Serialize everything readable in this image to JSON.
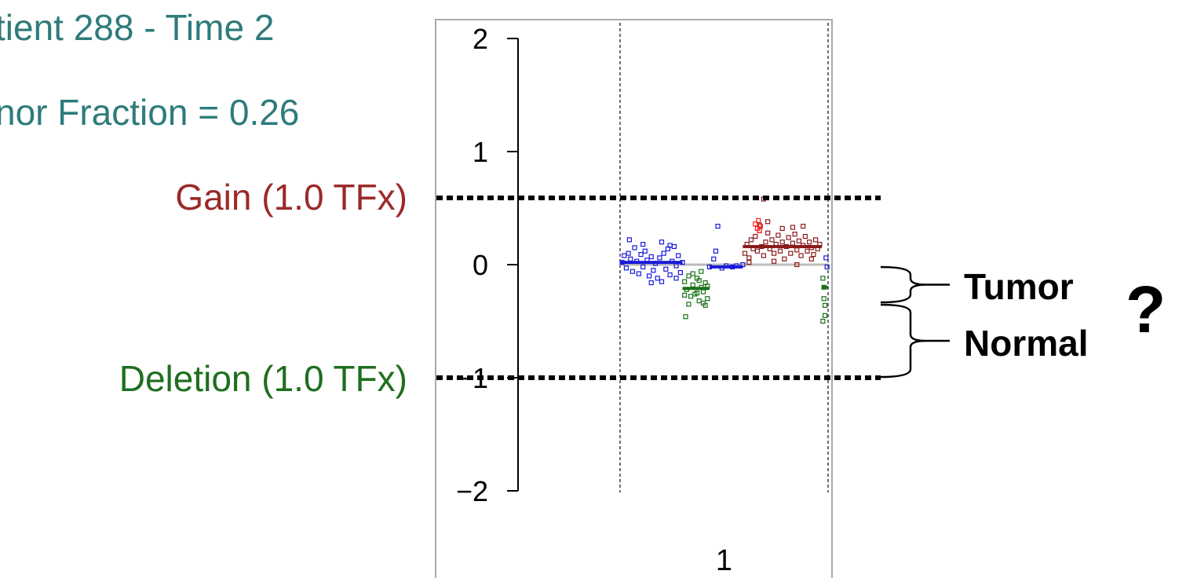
{
  "title": {
    "line1": "tient 288 - Time 2",
    "line2": "nor Fraction = 0.26",
    "color": "#2e7b7b"
  },
  "reference_lines": {
    "gain": {
      "label": "Gain (1.0 TFx)",
      "y": 0.59,
      "color": "#9b2a2a"
    },
    "deletion": {
      "label": "Deletion (1.0 TFx)",
      "y": -1.0,
      "color": "#1e6e1e"
    }
  },
  "annotations": {
    "tumor": "Tumor",
    "normal": "Normal",
    "question": "?"
  },
  "chart_data": {
    "type": "scatter",
    "ylim": [
      -2,
      2
    ],
    "y_ticks": [
      2,
      1,
      0,
      -1,
      -2
    ],
    "x_tick_labels": [
      "1"
    ],
    "grid": false,
    "colors": {
      "neutral": "#1a1adb",
      "gain": "#8b1a1a",
      "loss": "#1a701a",
      "highlight": "#ff2020",
      "baseline": "#bbbbbb"
    },
    "series": [
      {
        "points": [
          {
            "x": 0.01,
            "y": 0.02
          },
          {
            "x": 0.02,
            "y": 0.08
          },
          {
            "x": 0.03,
            "y": -0.03
          },
          {
            "x": 0.04,
            "y": 0.1
          },
          {
            "x": 0.05,
            "y": 0.05
          },
          {
            "x": 0.06,
            "y": -0.06
          },
          {
            "x": 0.07,
            "y": 0.15
          },
          {
            "x": 0.08,
            "y": 0.03
          },
          {
            "x": 0.09,
            "y": -0.08
          },
          {
            "x": 0.1,
            "y": 0.09
          },
          {
            "x": 0.11,
            "y": -0.02
          },
          {
            "x": 0.12,
            "y": 0.12
          },
          {
            "x": 0.13,
            "y": 0.04
          },
          {
            "x": 0.14,
            "y": -0.1
          },
          {
            "x": 0.15,
            "y": 0.07
          },
          {
            "x": 0.16,
            "y": -0.05
          },
          {
            "x": 0.17,
            "y": 0.01
          },
          {
            "x": 0.18,
            "y": -0.12
          },
          {
            "x": 0.19,
            "y": 0.06
          },
          {
            "x": 0.2,
            "y": -0.15
          },
          {
            "x": 0.21,
            "y": 0.1
          },
          {
            "x": 0.22,
            "y": -0.04
          },
          {
            "x": 0.23,
            "y": 0.14
          },
          {
            "x": 0.24,
            "y": -0.09
          },
          {
            "x": 0.25,
            "y": 0.03
          },
          {
            "x": 0.26,
            "y": 0.16
          },
          {
            "x": 0.27,
            "y": -0.01
          },
          {
            "x": 0.28,
            "y": 0.08
          },
          {
            "x": 0.29,
            "y": -0.07
          },
          {
            "x": 0.3,
            "y": 0.02
          },
          {
            "x": 0.045,
            "y": 0.22
          },
          {
            "x": 0.11,
            "y": 0.18
          },
          {
            "x": 0.2,
            "y": 0.2
          },
          {
            "x": 0.24,
            "y": 0.17
          },
          {
            "x": 0.15,
            "y": -0.16
          },
          {
            "x": 0.27,
            "y": -0.12
          },
          {
            "x": 0.43,
            "y": -0.02
          },
          {
            "x": 0.45,
            "y": 0.05
          },
          {
            "x": 0.46,
            "y": 0.12
          },
          {
            "x": 0.47,
            "y": 0.34
          },
          {
            "x": 0.49,
            "y": -0.03
          },
          {
            "x": 0.51,
            "y": -0.01
          },
          {
            "x": 0.54,
            "y": -0.02
          },
          {
            "x": 0.56,
            "y": -0.01
          },
          {
            "x": 0.59,
            "y": 0.0
          },
          {
            "x": 0.99,
            "y": 0.06
          },
          {
            "x": 0.995,
            "y": -0.02
          }
        ]
      },
      {
        "points": [
          {
            "x": 0.31,
            "y": -0.15
          },
          {
            "x": 0.32,
            "y": -0.22
          },
          {
            "x": 0.33,
            "y": -0.1
          },
          {
            "x": 0.34,
            "y": -0.28
          },
          {
            "x": 0.35,
            "y": -0.18
          },
          {
            "x": 0.36,
            "y": -0.26
          },
          {
            "x": 0.37,
            "y": -0.12
          },
          {
            "x": 0.38,
            "y": -0.32
          },
          {
            "x": 0.39,
            "y": -0.2
          },
          {
            "x": 0.4,
            "y": -0.24
          },
          {
            "x": 0.41,
            "y": -0.16
          },
          {
            "x": 0.42,
            "y": -0.3
          },
          {
            "x": 0.33,
            "y": -0.35
          },
          {
            "x": 0.35,
            "y": -0.08
          },
          {
            "x": 0.37,
            "y": -0.25
          },
          {
            "x": 0.39,
            "y": -0.06
          },
          {
            "x": 0.4,
            "y": -0.34
          },
          {
            "x": 0.42,
            "y": -0.19
          },
          {
            "x": 0.31,
            "y": -0.27
          },
          {
            "x": 0.38,
            "y": -0.14
          },
          {
            "x": 0.41,
            "y": -0.36
          },
          {
            "x": 0.315,
            "y": -0.46
          },
          {
            "x": 0.975,
            "y": -0.12
          },
          {
            "x": 0.98,
            "y": -0.3
          },
          {
            "x": 0.985,
            "y": -0.45
          },
          {
            "x": 0.98,
            "y": -0.2
          },
          {
            "x": 0.985,
            "y": -0.36
          },
          {
            "x": 0.975,
            "y": -0.5
          }
        ]
      },
      {
        "points": [
          {
            "x": 0.6,
            "y": 0.1
          },
          {
            "x": 0.61,
            "y": 0.18
          },
          {
            "x": 0.62,
            "y": 0.06
          },
          {
            "x": 0.63,
            "y": 0.22
          },
          {
            "x": 0.64,
            "y": 0.14
          },
          {
            "x": 0.65,
            "y": 0.25
          },
          {
            "x": 0.66,
            "y": 0.12
          },
          {
            "x": 0.67,
            "y": 0.3
          },
          {
            "x": 0.68,
            "y": 0.16
          },
          {
            "x": 0.69,
            "y": 0.08
          },
          {
            "x": 0.7,
            "y": 0.2
          },
          {
            "x": 0.71,
            "y": 0.28
          },
          {
            "x": 0.72,
            "y": 0.14
          },
          {
            "x": 0.73,
            "y": 0.22
          },
          {
            "x": 0.74,
            "y": 0.1
          },
          {
            "x": 0.75,
            "y": 0.18
          },
          {
            "x": 0.76,
            "y": 0.26
          },
          {
            "x": 0.77,
            "y": 0.12
          },
          {
            "x": 0.78,
            "y": 0.2
          },
          {
            "x": 0.79,
            "y": 0.05
          },
          {
            "x": 0.8,
            "y": 0.16
          },
          {
            "x": 0.81,
            "y": 0.24
          },
          {
            "x": 0.82,
            "y": 0.1
          },
          {
            "x": 0.83,
            "y": 0.19
          },
          {
            "x": 0.84,
            "y": 0.27
          },
          {
            "x": 0.85,
            "y": 0.13
          },
          {
            "x": 0.86,
            "y": 0.21
          },
          {
            "x": 0.87,
            "y": 0.08
          },
          {
            "x": 0.88,
            "y": 0.17
          },
          {
            "x": 0.89,
            "y": 0.25
          },
          {
            "x": 0.9,
            "y": 0.12
          },
          {
            "x": 0.91,
            "y": 0.2
          },
          {
            "x": 0.92,
            "y": 0.15
          },
          {
            "x": 0.93,
            "y": 0.09
          },
          {
            "x": 0.94,
            "y": 0.22
          },
          {
            "x": 0.95,
            "y": 0.14
          },
          {
            "x": 0.96,
            "y": 0.18
          },
          {
            "x": 0.67,
            "y": 0.35
          },
          {
            "x": 0.71,
            "y": 0.38
          },
          {
            "x": 0.78,
            "y": 0.32
          },
          {
            "x": 0.83,
            "y": 0.33
          },
          {
            "x": 0.88,
            "y": 0.34
          },
          {
            "x": 0.62,
            "y": 0.02
          },
          {
            "x": 0.74,
            "y": 0.03
          },
          {
            "x": 0.85,
            "y": 0.0
          },
          {
            "x": 0.92,
            "y": 0.05
          },
          {
            "x": 0.69,
            "y": 0.58
          }
        ]
      },
      {
        "points": [
          {
            "x": 0.65,
            "y": 0.36
          },
          {
            "x": 0.66,
            "y": 0.32
          },
          {
            "x": 0.665,
            "y": 0.39
          },
          {
            "x": 0.67,
            "y": 0.3
          },
          {
            "x": 0.675,
            "y": 0.34
          }
        ]
      }
    ],
    "segments": [
      {
        "x0": 0.0,
        "x1": 0.3,
        "y": 0.02
      },
      {
        "x0": 0.3,
        "x1": 0.43,
        "y": -0.21
      },
      {
        "x0": 0.43,
        "x1": 0.59,
        "y": -0.02
      },
      {
        "x0": 0.59,
        "x1": 0.97,
        "y": 0.16
      },
      {
        "x0": 0.97,
        "x1": 1.0,
        "y": -0.2
      }
    ]
  }
}
